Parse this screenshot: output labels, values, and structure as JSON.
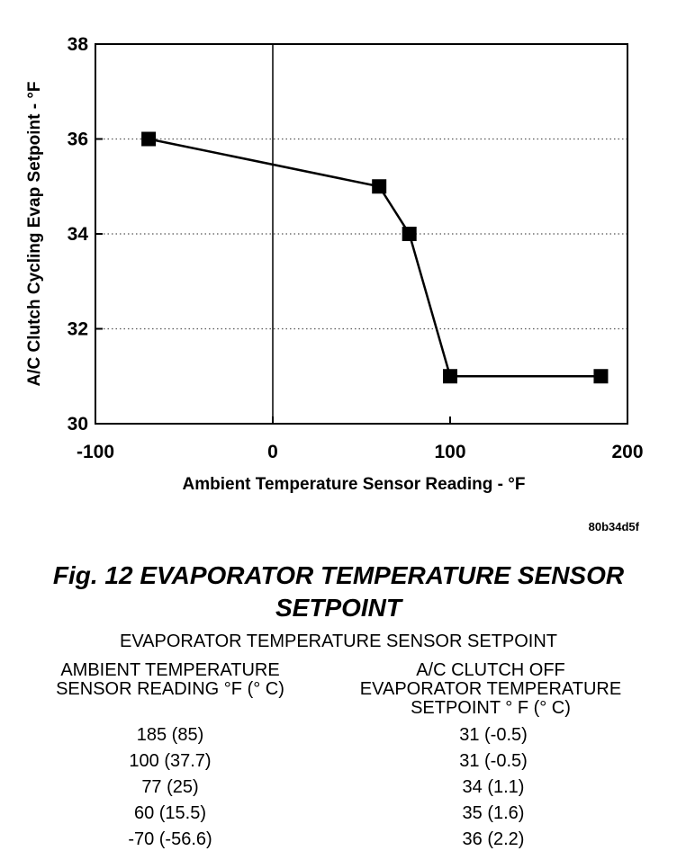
{
  "chart_data": {
    "type": "line",
    "x": [
      -70,
      60,
      77,
      100,
      185
    ],
    "series": [
      {
        "values": [
          36,
          35,
          34,
          31,
          31
        ]
      }
    ],
    "xlabel": "Ambient Temperature Sensor Reading - °F",
    "ylabel": "A/C Clutch Cycling Evap Setpoint - °F",
    "xlim": [
      -100,
      200
    ],
    "ylim": [
      30,
      38
    ],
    "xticks": [
      "-100",
      "0",
      "100",
      "200"
    ],
    "yticks": [
      "30",
      "32",
      "34",
      "36",
      "38"
    ],
    "grid": "horizontal dotted",
    "marker": "square"
  },
  "figure": {
    "code": "80b34d5f",
    "caption_line1": "Fig. 12 EVAPORATOR TEMPERATURE SENSOR",
    "caption_line2": "SETPOINT"
  },
  "table": {
    "title": "EVAPORATOR TEMPERATURE SENSOR SETPOINT",
    "headers": {
      "ambient_line1": "AMBIENT TEMPERATURE",
      "ambient_line2": "SENSOR READING °F (° C)",
      "clutch_line1": "A/C CLUTCH OFF",
      "clutch_line2": "EVAPORATOR TEMPERATURE",
      "clutch_line3": "SETPOINT ° F (° C)"
    },
    "rows": [
      {
        "ambient": "185 (85)",
        "setpoint": "31 (-0.5)"
      },
      {
        "ambient": "100 (37.7)",
        "setpoint": "31 (-0.5)"
      },
      {
        "ambient": "77 (25)",
        "setpoint": "34 (1.1)"
      },
      {
        "ambient": "60 (15.5)",
        "setpoint": "35 (1.6)"
      },
      {
        "ambient": "-70 (-56.6)",
        "setpoint": "36 (2.2)"
      }
    ]
  }
}
